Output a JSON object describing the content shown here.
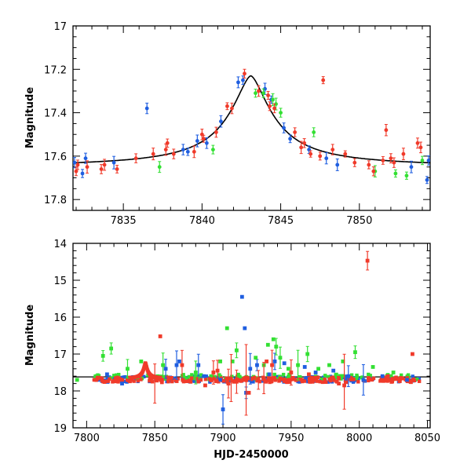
{
  "chart_data": [
    {
      "type": "scatter",
      "title": "",
      "xlabel": "",
      "ylabel": "Magnitude",
      "xlim": [
        7831.8,
        7854.5
      ],
      "ylim": [
        17.0,
        17.85
      ],
      "y_inverted": true,
      "grid": false,
      "x_ticks": [
        "7835",
        "7840",
        "7845",
        "7850"
      ],
      "x_tick_values": [
        7835,
        7840,
        7845,
        7850
      ],
      "y_ticks": [
        "17",
        "17.2",
        "17.4",
        "17.6",
        "17.8"
      ],
      "y_tick_values": [
        17.0,
        17.2,
        17.4,
        17.6,
        17.8
      ],
      "model_curve": {
        "baseline": 17.65,
        "peak_time": 7843.1,
        "amplitude": 0.42,
        "width": 1.6,
        "color": "#000000"
      },
      "series": [
        {
          "color": "#1f5ee0",
          "points": [
            [
              7831.9,
              17.63
            ],
            [
              7832.4,
              17.68
            ],
            [
              7832.6,
              17.61
            ],
            [
              7834.4,
              17.63
            ],
            [
              7836.5,
              17.38
            ],
            [
              7838.8,
              17.57
            ],
            [
              7839.1,
              17.58
            ],
            [
              7839.7,
              17.53
            ],
            [
              7840.3,
              17.54
            ],
            [
              7841.2,
              17.44
            ],
            [
              7842.3,
              17.26
            ],
            [
              7842.6,
              17.25
            ],
            [
              7844.0,
              17.29
            ],
            [
              7844.4,
              17.34
            ],
            [
              7845.2,
              17.47
            ],
            [
              7845.6,
              17.52
            ],
            [
              7846.8,
              17.57
            ],
            [
              7847.9,
              17.61
            ],
            [
              7848.6,
              17.64
            ],
            [
              7853.3,
              17.65
            ],
            [
              7854.3,
              17.71
            ],
            [
              7854.4,
              17.62
            ]
          ]
        },
        {
          "color": "#33e033",
          "points": [
            [
              7837.3,
              17.65
            ],
            [
              7840.7,
              17.57
            ],
            [
              7843.4,
              17.31
            ],
            [
              7843.9,
              17.31
            ],
            [
              7844.5,
              17.34
            ],
            [
              7844.7,
              17.36
            ],
            [
              7845.0,
              17.4
            ],
            [
              7847.1,
              17.49
            ],
            [
              7851.0,
              17.67
            ],
            [
              7852.3,
              17.68
            ],
            [
              7853.0,
              17.69
            ],
            [
              7854.0,
              17.62
            ]
          ]
        },
        {
          "color": "#f03a2a",
          "points": [
            [
              7832.0,
              17.67
            ],
            [
              7832.1,
              17.64
            ],
            [
              7832.7,
              17.65
            ],
            [
              7833.6,
              17.66
            ],
            [
              7833.8,
              17.64
            ],
            [
              7834.6,
              17.66
            ],
            [
              7835.8,
              17.61
            ],
            [
              7836.9,
              17.59
            ],
            [
              7837.7,
              17.57
            ],
            [
              7837.8,
              17.54
            ],
            [
              7838.2,
              17.59
            ],
            [
              7839.5,
              17.58
            ],
            [
              7840.0,
              17.5
            ],
            [
              7840.1,
              17.52
            ],
            [
              7840.9,
              17.49
            ],
            [
              7841.6,
              17.37
            ],
            [
              7841.9,
              17.38
            ],
            [
              7842.7,
              17.22
            ],
            [
              7843.6,
              17.3
            ],
            [
              7844.2,
              17.32
            ],
            [
              7844.3,
              17.37
            ],
            [
              7844.6,
              17.38
            ],
            [
              7845.9,
              17.49
            ],
            [
              7846.3,
              17.56
            ],
            [
              7846.5,
              17.54
            ],
            [
              7846.9,
              17.59
            ],
            [
              7847.5,
              17.6
            ],
            [
              7847.7,
              17.25
            ],
            [
              7848.3,
              17.57
            ],
            [
              7849.1,
              17.59
            ],
            [
              7849.7,
              17.63
            ],
            [
              7850.6,
              17.64
            ],
            [
              7850.9,
              17.67
            ],
            [
              7851.5,
              17.62
            ],
            [
              7851.7,
              17.48
            ],
            [
              7852.0,
              17.61
            ],
            [
              7852.2,
              17.63
            ],
            [
              7852.8,
              17.59
            ],
            [
              7853.7,
              17.54
            ],
            [
              7853.9,
              17.56
            ]
          ]
        }
      ]
    },
    {
      "type": "scatter",
      "title": "",
      "xlabel": "HJD-2450000",
      "ylabel": "Magnitude",
      "xlim": [
        7790,
        8052
      ],
      "ylim": [
        14.0,
        19.0
      ],
      "y_inverted": true,
      "grid": false,
      "reference_line": {
        "y": 17.62,
        "color": "#000000"
      },
      "x_ticks": [
        "7800",
        "7850",
        "7900",
        "7950",
        "8000",
        "8050"
      ],
      "x_tick_values": [
        7800,
        7850,
        7900,
        7950,
        8000,
        8050
      ],
      "y_ticks": [
        "14",
        "15",
        "16",
        "17",
        "18",
        "19"
      ],
      "y_tick_values": [
        14,
        15,
        16,
        17,
        18,
        19
      ],
      "series": [
        {
          "color": "#1f5ee0",
          "baseline_band": {
            "x_start": 7805,
            "x_end": 8045,
            "center": 17.68,
            "spread": 0.08,
            "count": 150
          },
          "points": [
            [
              7815,
              17.55
            ],
            [
              7826,
              17.8
            ],
            [
              7858,
              17.4
            ],
            [
              7866,
              17.3
            ],
            [
              7868,
              17.2
            ],
            [
              7882,
              17.3
            ],
            [
              7886,
              17.6
            ],
            [
              7898,
              17.7
            ],
            [
              7900,
              18.5
            ],
            [
              7914,
              15.45
            ],
            [
              7916,
              16.3
            ],
            [
              7917,
              18.05
            ],
            [
              7920,
              17.4
            ],
            [
              7925,
              17.3
            ],
            [
              7934,
              17.55
            ],
            [
              7938,
              17.2
            ],
            [
              7945,
              17.25
            ],
            [
              7960,
              17.35
            ],
            [
              7968,
              17.5
            ],
            [
              7981,
              17.45
            ],
            [
              7992,
              17.6
            ],
            [
              8003,
              17.7
            ],
            [
              8017,
              17.6
            ],
            [
              8035,
              17.7
            ]
          ]
        },
        {
          "color": "#33e033",
          "baseline_band": {
            "x_start": 7805,
            "x_end": 8045,
            "center": 17.62,
            "spread": 0.07,
            "count": 110
          },
          "points": [
            [
              7793,
              17.7
            ],
            [
              7812,
              17.05
            ],
            [
              7818,
              16.85
            ],
            [
              7830,
              17.4
            ],
            [
              7840,
              17.2
            ],
            [
              7856,
              17.3
            ],
            [
              7880,
              17.5
            ],
            [
              7898,
              17.2
            ],
            [
              7903,
              16.3
            ],
            [
              7907,
              17.2
            ],
            [
              7910,
              16.9
            ],
            [
              7924,
              17.1
            ],
            [
              7930,
              17.3
            ],
            [
              7933,
              16.75
            ],
            [
              7937,
              16.6
            ],
            [
              7939,
              16.8
            ],
            [
              7942,
              17.1
            ],
            [
              7948,
              17.4
            ],
            [
              7955,
              17.3
            ],
            [
              7962,
              17.0
            ],
            [
              7970,
              17.4
            ],
            [
              7978,
              17.3
            ],
            [
              7988,
              17.2
            ],
            [
              7997,
              16.95
            ],
            [
              8010,
              17.35
            ],
            [
              8025,
              17.5
            ]
          ]
        },
        {
          "color": "#f03a2a",
          "baseline_band": {
            "x_start": 7805,
            "x_end": 8045,
            "center": 17.7,
            "spread": 0.07,
            "count": 260
          },
          "points": [
            [
              7854,
              16.52
            ],
            [
              7870,
              17.3
            ],
            [
              7887,
              17.85
            ],
            [
              7893,
              17.5
            ],
            [
              7896,
              17.45
            ],
            [
              7904,
              17.8
            ],
            [
              7910,
              17.75
            ],
            [
              7919,
              18.05
            ],
            [
              7926,
              17.7
            ],
            [
              7932,
              17.2
            ],
            [
              7936,
              17.3
            ],
            [
              7950,
              17.5
            ],
            [
              7963,
              17.55
            ],
            [
              7985,
              17.8
            ],
            [
              7989,
              17.85
            ],
            [
              8006,
              14.47
            ],
            [
              8021,
              17.6
            ],
            [
              8039,
              17.0
            ]
          ]
        }
      ],
      "event_bump": {
        "x_center": 7843.1,
        "x_start": 7832,
        "x_end": 7855,
        "baseline": 17.66,
        "amplitude": 0.42,
        "width": 1.6
      }
    }
  ]
}
